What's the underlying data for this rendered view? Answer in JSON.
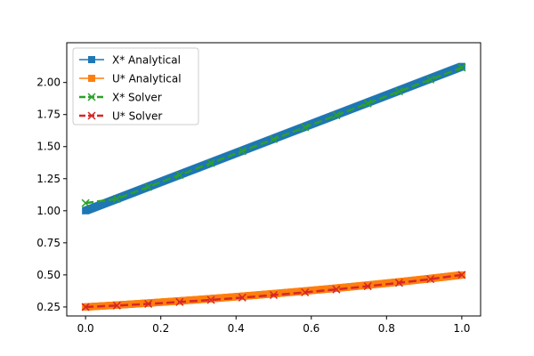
{
  "chart_data": {
    "type": "line",
    "title": "",
    "xlabel": "",
    "ylabel": "",
    "xlim": [
      -0.05,
      1.05
    ],
    "ylim": [
      0.18,
      2.31
    ],
    "x_ticks": [
      0.0,
      0.2,
      0.4,
      0.6,
      0.8,
      1.0
    ],
    "x_tick_labels": [
      "0.0",
      "0.2",
      "0.4",
      "0.6",
      "0.8",
      "1.0"
    ],
    "y_ticks": [
      0.25,
      0.5,
      0.75,
      1.0,
      1.25,
      1.5,
      1.75,
      2.0
    ],
    "y_tick_labels": [
      "0.25",
      "0.50",
      "0.75",
      "1.00",
      "1.25",
      "1.50",
      "1.75",
      "2.00"
    ],
    "grid": false,
    "legend_position": "top-left",
    "series": [
      {
        "name": "X* Analytical",
        "color": "#1f77b4",
        "marker": "square",
        "linestyle": "solid",
        "function": "x_analytical",
        "sample_count": 401
      },
      {
        "name": "U* Analytical",
        "color": "#ff7f0e",
        "marker": "square",
        "linestyle": "solid",
        "function": "u_analytical",
        "sample_count": 401
      },
      {
        "name": "X* Solver",
        "color": "#2ca02c",
        "marker": "x",
        "linestyle": "dashed",
        "x": [
          0.0,
          0.0833,
          0.1667,
          0.25,
          0.3333,
          0.4167,
          0.5,
          0.5833,
          0.6667,
          0.75,
          0.8333,
          0.9167,
          1.0
        ],
        "y": [
          1.06,
          1.093,
          1.186,
          1.279,
          1.372,
          1.465,
          1.558,
          1.651,
          1.744,
          1.837,
          1.93,
          2.023,
          2.116
        ]
      },
      {
        "name": "U* Solver",
        "color": "#d62728",
        "marker": "x",
        "linestyle": "dashed",
        "x": [
          0.0,
          0.0833,
          0.1667,
          0.25,
          0.3333,
          0.4167,
          0.5,
          0.5833,
          0.6667,
          0.75,
          0.8333,
          0.9167,
          1.0
        ],
        "y": [
          0.25,
          0.261,
          0.274,
          0.289,
          0.305,
          0.323,
          0.343,
          0.364,
          0.387,
          0.412,
          0.438,
          0.467,
          0.5
        ]
      }
    ]
  }
}
